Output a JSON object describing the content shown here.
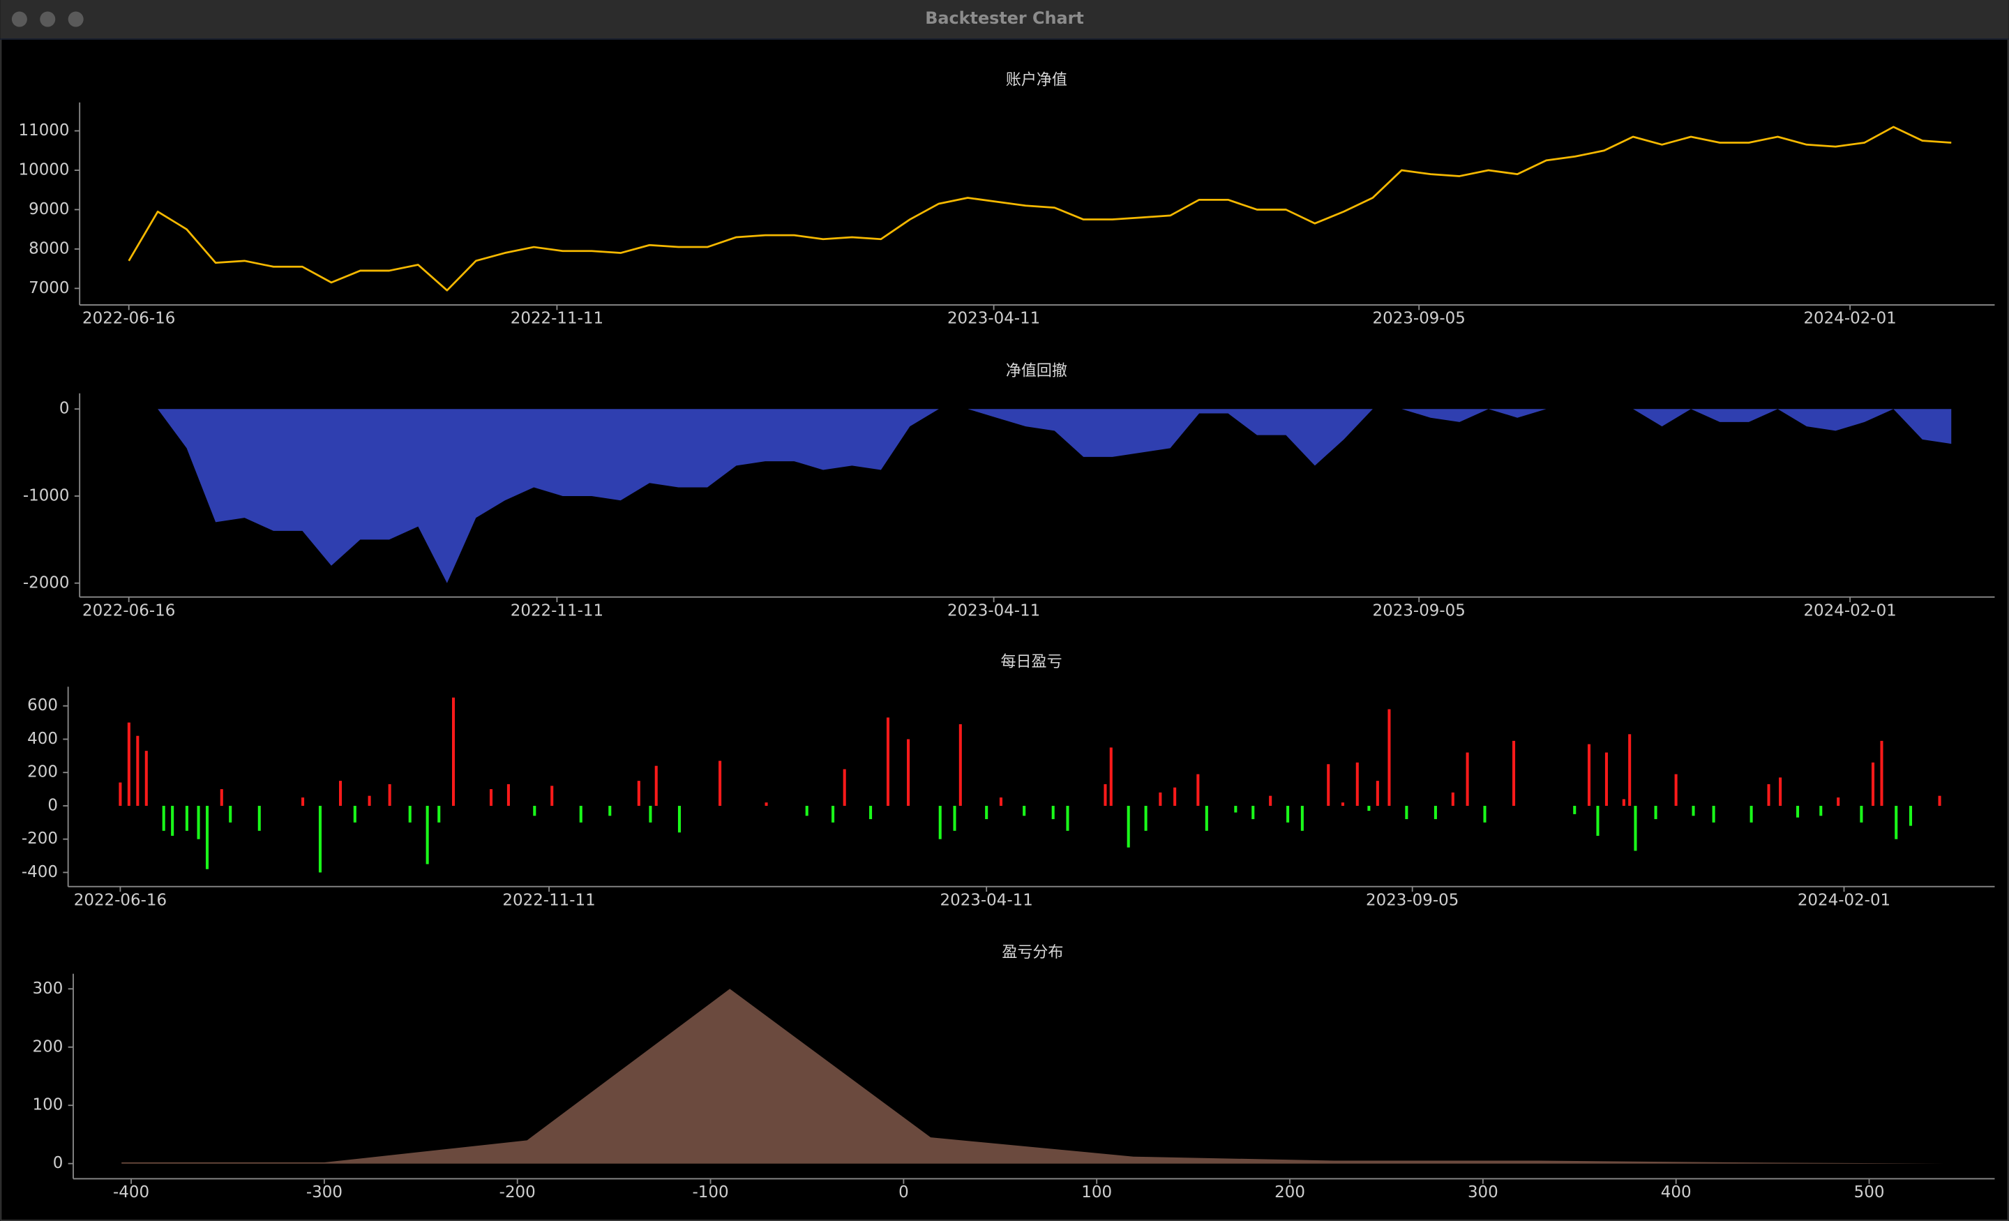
{
  "window_title": "Backtester Chart",
  "chart_data": [
    {
      "type": "line",
      "title": "账户净值",
      "color": "#f5b800",
      "x": [
        "2022-06-16",
        "2022-06-26",
        "2022-07-06",
        "2022-07-16",
        "2022-07-26",
        "2022-08-05",
        "2022-08-15",
        "2022-08-25",
        "2022-09-04",
        "2022-09-14",
        "2022-09-24",
        "2022-10-04",
        "2022-10-14",
        "2022-10-24",
        "2022-11-03",
        "2022-11-13",
        "2022-11-23",
        "2022-12-03",
        "2022-12-13",
        "2022-12-23",
        "2023-01-02",
        "2023-01-12",
        "2023-01-22",
        "2023-02-01",
        "2023-02-11",
        "2023-02-21",
        "2023-03-03",
        "2023-03-13",
        "2023-03-23",
        "2023-04-02",
        "2023-04-12",
        "2023-04-22",
        "2023-05-02",
        "2023-05-12",
        "2023-05-22",
        "2023-06-01",
        "2023-06-11",
        "2023-06-21",
        "2023-07-01",
        "2023-07-11",
        "2023-07-21",
        "2023-07-31",
        "2023-08-10",
        "2023-08-20",
        "2023-08-30",
        "2023-09-09",
        "2023-09-19",
        "2023-09-29",
        "2023-10-09",
        "2023-10-19",
        "2023-10-29",
        "2023-11-08",
        "2023-11-18",
        "2023-11-28",
        "2023-12-08",
        "2023-12-18",
        "2023-12-28",
        "2024-01-07",
        "2024-01-17",
        "2024-01-27",
        "2024-02-06",
        "2024-02-16",
        "2024-02-26",
        "2024-03-07"
      ],
      "values": [
        7700,
        8950,
        8500,
        7650,
        7700,
        7550,
        7550,
        7150,
        7450,
        7450,
        7600,
        6950,
        7700,
        7900,
        8050,
        7950,
        7950,
        7900,
        8100,
        8050,
        8050,
        8300,
        8350,
        8350,
        8250,
        8300,
        8250,
        8750,
        9150,
        9300,
        9200,
        9100,
        9050,
        8750,
        8750,
        8800,
        8850,
        9250,
        9250,
        9000,
        9000,
        8650,
        8950,
        9300,
        10000,
        9900,
        9850,
        10000,
        9900,
        10250,
        10350,
        10500,
        10850,
        10650,
        10850,
        10700,
        10700,
        10850,
        10650,
        10600,
        10700,
        11100,
        10750,
        10700
      ],
      "xlim": [
        "2022-05-30",
        "2024-03-22"
      ],
      "xticks": [
        "2022-06-16",
        "2022-11-11",
        "2023-04-11",
        "2023-09-05",
        "2024-02-01"
      ],
      "ylim": [
        6580,
        11720
      ],
      "yticks": [
        7000,
        8000,
        9000,
        10000,
        11000
      ]
    },
    {
      "type": "area",
      "title": "净值回撤",
      "color": "#2f3fb0",
      "x": [
        "2022-06-16",
        "2022-06-26",
        "2022-07-06",
        "2022-07-16",
        "2022-07-26",
        "2022-08-05",
        "2022-08-15",
        "2022-08-25",
        "2022-09-04",
        "2022-09-14",
        "2022-09-24",
        "2022-10-04",
        "2022-10-14",
        "2022-10-24",
        "2022-11-03",
        "2022-11-13",
        "2022-11-23",
        "2022-12-03",
        "2022-12-13",
        "2022-12-23",
        "2023-01-02",
        "2023-01-12",
        "2023-01-22",
        "2023-02-01",
        "2023-02-11",
        "2023-02-21",
        "2023-03-03",
        "2023-03-13",
        "2023-03-23",
        "2023-04-02",
        "2023-04-12",
        "2023-04-22",
        "2023-05-02",
        "2023-05-12",
        "2023-05-22",
        "2023-06-01",
        "2023-06-11",
        "2023-06-21",
        "2023-07-01",
        "2023-07-11",
        "2023-07-21",
        "2023-07-31",
        "2023-08-10",
        "2023-08-20",
        "2023-08-30",
        "2023-09-09",
        "2023-09-19",
        "2023-09-29",
        "2023-10-09",
        "2023-10-19",
        "2023-10-29",
        "2023-11-08",
        "2023-11-18",
        "2023-11-28",
        "2023-12-08",
        "2023-12-18",
        "2023-12-28",
        "2024-01-07",
        "2024-01-17",
        "2024-01-27",
        "2024-02-06",
        "2024-02-16",
        "2024-02-26",
        "2024-03-07"
      ],
      "values": [
        0,
        0,
        -450,
        -1300,
        -1250,
        -1400,
        -1400,
        -1800,
        -1500,
        -1500,
        -1350,
        -2000,
        -1250,
        -1050,
        -900,
        -1000,
        -1000,
        -1050,
        -850,
        -900,
        -900,
        -650,
        -600,
        -600,
        -700,
        -650,
        -700,
        -200,
        0,
        0,
        -100,
        -200,
        -250,
        -550,
        -550,
        -500,
        -450,
        -50,
        -50,
        -300,
        -300,
        -650,
        -350,
        0,
        0,
        -100,
        -150,
        0,
        -100,
        0,
        0,
        0,
        0,
        -200,
        0,
        -150,
        -150,
        0,
        -200,
        -250,
        -150,
        0,
        -350,
        -400
      ],
      "xlim": [
        "2022-05-30",
        "2024-03-22"
      ],
      "xticks": [
        "2022-06-16",
        "2022-11-11",
        "2023-04-11",
        "2023-09-05",
        "2024-02-01"
      ],
      "ylim": [
        -2160,
        180
      ],
      "yticks": [
        -2000,
        -1000,
        0
      ]
    },
    {
      "type": "bar",
      "title": "每日盈亏",
      "positive_color": "#ff1a1a",
      "negative_color": "#1aff1a",
      "x": [
        "2022-06-16",
        "2022-06-19",
        "2022-06-22",
        "2022-06-25",
        "2022-07-01",
        "2022-07-04",
        "2022-07-09",
        "2022-07-13",
        "2022-07-16",
        "2022-07-21",
        "2022-07-24",
        "2022-08-03",
        "2022-08-18",
        "2022-08-24",
        "2022-08-31",
        "2022-09-05",
        "2022-09-10",
        "2022-09-17",
        "2022-09-24",
        "2022-09-30",
        "2022-10-04",
        "2022-10-09",
        "2022-10-22",
        "2022-10-28",
        "2022-11-06",
        "2022-11-12",
        "2022-11-22",
        "2022-12-02",
        "2022-12-12",
        "2022-12-16",
        "2022-12-18",
        "2022-12-26",
        "2023-01-09",
        "2023-01-25",
        "2023-02-08",
        "2023-02-17",
        "2023-02-21",
        "2023-03-02",
        "2023-03-08",
        "2023-03-15",
        "2023-03-26",
        "2023-03-31",
        "2023-04-02",
        "2023-04-11",
        "2023-04-16",
        "2023-04-24",
        "2023-05-04",
        "2023-05-09",
        "2023-05-22",
        "2023-05-24",
        "2023-05-30",
        "2023-06-05",
        "2023-06-10",
        "2023-06-15",
        "2023-06-23",
        "2023-06-26",
        "2023-07-06",
        "2023-07-12",
        "2023-07-18",
        "2023-07-24",
        "2023-07-29",
        "2023-08-07",
        "2023-08-12",
        "2023-08-17",
        "2023-08-21",
        "2023-08-24",
        "2023-08-28",
        "2023-09-03",
        "2023-09-13",
        "2023-09-19",
        "2023-09-24",
        "2023-09-30",
        "2023-10-10",
        "2023-10-31",
        "2023-11-05",
        "2023-11-08",
        "2023-11-11",
        "2023-11-17",
        "2023-11-19",
        "2023-11-21",
        "2023-11-28",
        "2023-12-05",
        "2023-12-11",
        "2023-12-18",
        "2023-12-31",
        "2024-01-06",
        "2024-01-10",
        "2024-01-16",
        "2024-01-24",
        "2024-01-30",
        "2024-02-07",
        "2024-02-11",
        "2024-02-14",
        "2024-02-19",
        "2024-02-24",
        "2024-03-05"
      ],
      "values": [
        140,
        500,
        420,
        330,
        -150,
        -180,
        -150,
        -200,
        -380,
        100,
        -100,
        -150,
        50,
        -400,
        150,
        -100,
        60,
        130,
        -100,
        -350,
        -100,
        650,
        100,
        130,
        -60,
        120,
        -100,
        -60,
        150,
        -100,
        240,
        -160,
        270,
        20,
        -60,
        -100,
        220,
        -80,
        530,
        400,
        -200,
        -150,
        490,
        -80,
        50,
        -60,
        -80,
        -150,
        130,
        350,
        -250,
        -150,
        80,
        110,
        190,
        -150,
        -40,
        -80,
        60,
        -100,
        -150,
        250,
        20,
        260,
        -30,
        150,
        580,
        -80,
        -80,
        80,
        320,
        -100,
        390,
        -50,
        370,
        -180,
        320,
        40,
        430,
        -270,
        -80,
        190,
        -60,
        -100,
        -100,
        130,
        170,
        -70,
        -60,
        50,
        -100,
        260,
        390,
        -200,
        -120,
        60
      ],
      "xlim": [
        "2022-05-29",
        "2024-03-24"
      ],
      "xticks": [
        "2022-06-16",
        "2022-11-11",
        "2023-04-11",
        "2023-09-05",
        "2024-02-01"
      ],
      "ylim": [
        -485,
        715
      ],
      "yticks": [
        -400,
        -200,
        0,
        200,
        400,
        600
      ]
    },
    {
      "type": "area",
      "title": "盈亏分布",
      "color": "#6b4a3e",
      "x": [
        -405,
        -300,
        -195,
        -90,
        14,
        119,
        223,
        329,
        430,
        539
      ],
      "values": [
        2,
        2,
        40,
        300,
        45,
        12,
        5,
        5,
        2,
        0
      ],
      "xlim": [
        -430,
        565
      ],
      "xticks": [
        -400,
        -300,
        -200,
        -100,
        0,
        100,
        200,
        300,
        400,
        500
      ],
      "ylim": [
        -26,
        326
      ],
      "yticks": [
        0,
        100,
        200,
        300
      ]
    }
  ]
}
